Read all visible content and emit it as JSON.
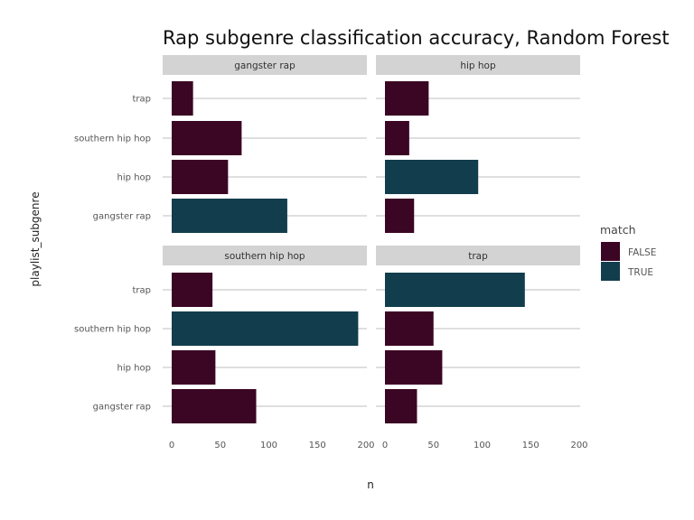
{
  "chart_data": {
    "type": "bar",
    "orientation": "horizontal",
    "title": "Rap subgenre classification accuracy, Random Forest",
    "xlabel": "n",
    "ylabel": "playlist_subgenre",
    "xlim": [
      0,
      200
    ],
    "x_ticks": [
      "0",
      "50",
      "100",
      "150",
      "200"
    ],
    "categories": [
      "trap",
      "southern hip hop",
      "hip hop",
      "gangster rap"
    ],
    "legend": {
      "title": "match",
      "position": "right",
      "items": [
        {
          "label": "FALSE",
          "color": "#3b0524"
        },
        {
          "label": "TRUE",
          "color": "#123d4d"
        }
      ]
    },
    "grid": true,
    "panels": [
      {
        "facet": "gangster rap",
        "bars": [
          {
            "category": "trap",
            "value": 22,
            "match": "FALSE"
          },
          {
            "category": "southern hip hop",
            "value": 72,
            "match": "FALSE"
          },
          {
            "category": "hip hop",
            "value": 58,
            "match": "FALSE"
          },
          {
            "category": "gangster rap",
            "value": 119,
            "match": "TRUE"
          }
        ]
      },
      {
        "facet": "hip hop",
        "bars": [
          {
            "category": "trap",
            "value": 45,
            "match": "FALSE"
          },
          {
            "category": "southern hip hop",
            "value": 25,
            "match": "FALSE"
          },
          {
            "category": "hip hop",
            "value": 96,
            "match": "TRUE"
          },
          {
            "category": "gangster rap",
            "value": 30,
            "match": "FALSE"
          }
        ]
      },
      {
        "facet": "southern hip hop",
        "bars": [
          {
            "category": "trap",
            "value": 42,
            "match": "FALSE"
          },
          {
            "category": "southern hip hop",
            "value": 192,
            "match": "TRUE"
          },
          {
            "category": "hip hop",
            "value": 45,
            "match": "FALSE"
          },
          {
            "category": "gangster rap",
            "value": 87,
            "match": "FALSE"
          }
        ]
      },
      {
        "facet": "trap",
        "bars": [
          {
            "category": "trap",
            "value": 144,
            "match": "TRUE"
          },
          {
            "category": "southern hip hop",
            "value": 50,
            "match": "FALSE"
          },
          {
            "category": "hip hop",
            "value": 59,
            "match": "FALSE"
          },
          {
            "category": "gangster rap",
            "value": 33,
            "match": "FALSE"
          }
        ]
      }
    ]
  }
}
